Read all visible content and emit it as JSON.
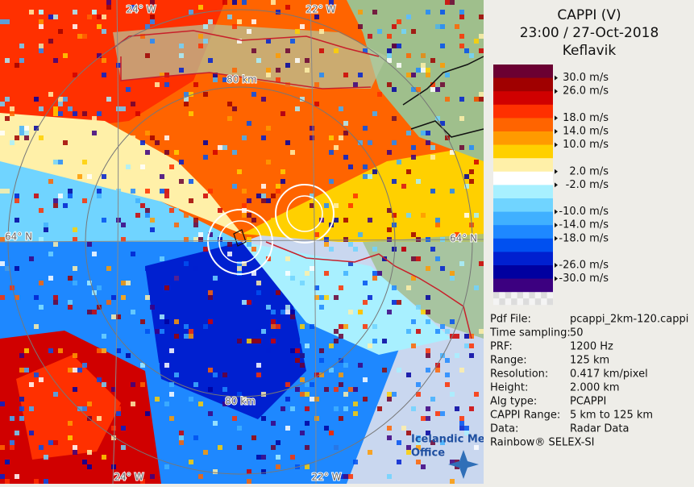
{
  "title": [
    "CAPPI (V)",
    "23:00 / 27-Oct-2018",
    "Keflavik"
  ],
  "legend": {
    "colors": [
      "#6b0032",
      "#a00000",
      "#d00000",
      "#ff3000",
      "#ff6400",
      "#ff9a00",
      "#ffd000",
      "#fff0a8",
      "#ffffff",
      "#a8f0ff",
      "#70d4ff",
      "#40b0ff",
      "#1e88ff",
      "#0050f0",
      "#0020d0",
      "#0000a0",
      "#3c0080"
    ],
    "labels": [
      "30.0 m/s",
      "26.0 m/s",
      "18.0 m/s",
      "14.0 m/s",
      "10.0 m/s",
      "2.0 m/s",
      "-2.0 m/s",
      "-10.0 m/s",
      "-14.0 m/s",
      "-18.0 m/s",
      "-26.0 m/s",
      "-30.0 m/s"
    ]
  },
  "info": {
    "rows": [
      [
        "Pdf File:",
        "pcappi_2km-120.cappi"
      ],
      [
        "Time sampling:",
        "50"
      ],
      [
        "PRF:",
        "1200 Hz"
      ],
      [
        "Range:",
        "125 km"
      ],
      [
        "Resolution:",
        "0.417 km/pixel"
      ],
      [
        "Height:",
        "2.000 km"
      ],
      [
        "Alg type:",
        "PCAPPI"
      ],
      [
        "CAPPI Range:",
        "5 km to 125 km"
      ],
      [
        "Data:",
        "Radar Data"
      ]
    ]
  },
  "footer": "Rainbow® SELEX-SI",
  "map_labels": [
    "24° W",
    "22° W",
    "64° N",
    "64° N",
    "80 km",
    "80 km",
    "24° W",
    "22° W"
  ],
  "logo": [
    "Icelandic Met",
    "Office"
  ]
}
